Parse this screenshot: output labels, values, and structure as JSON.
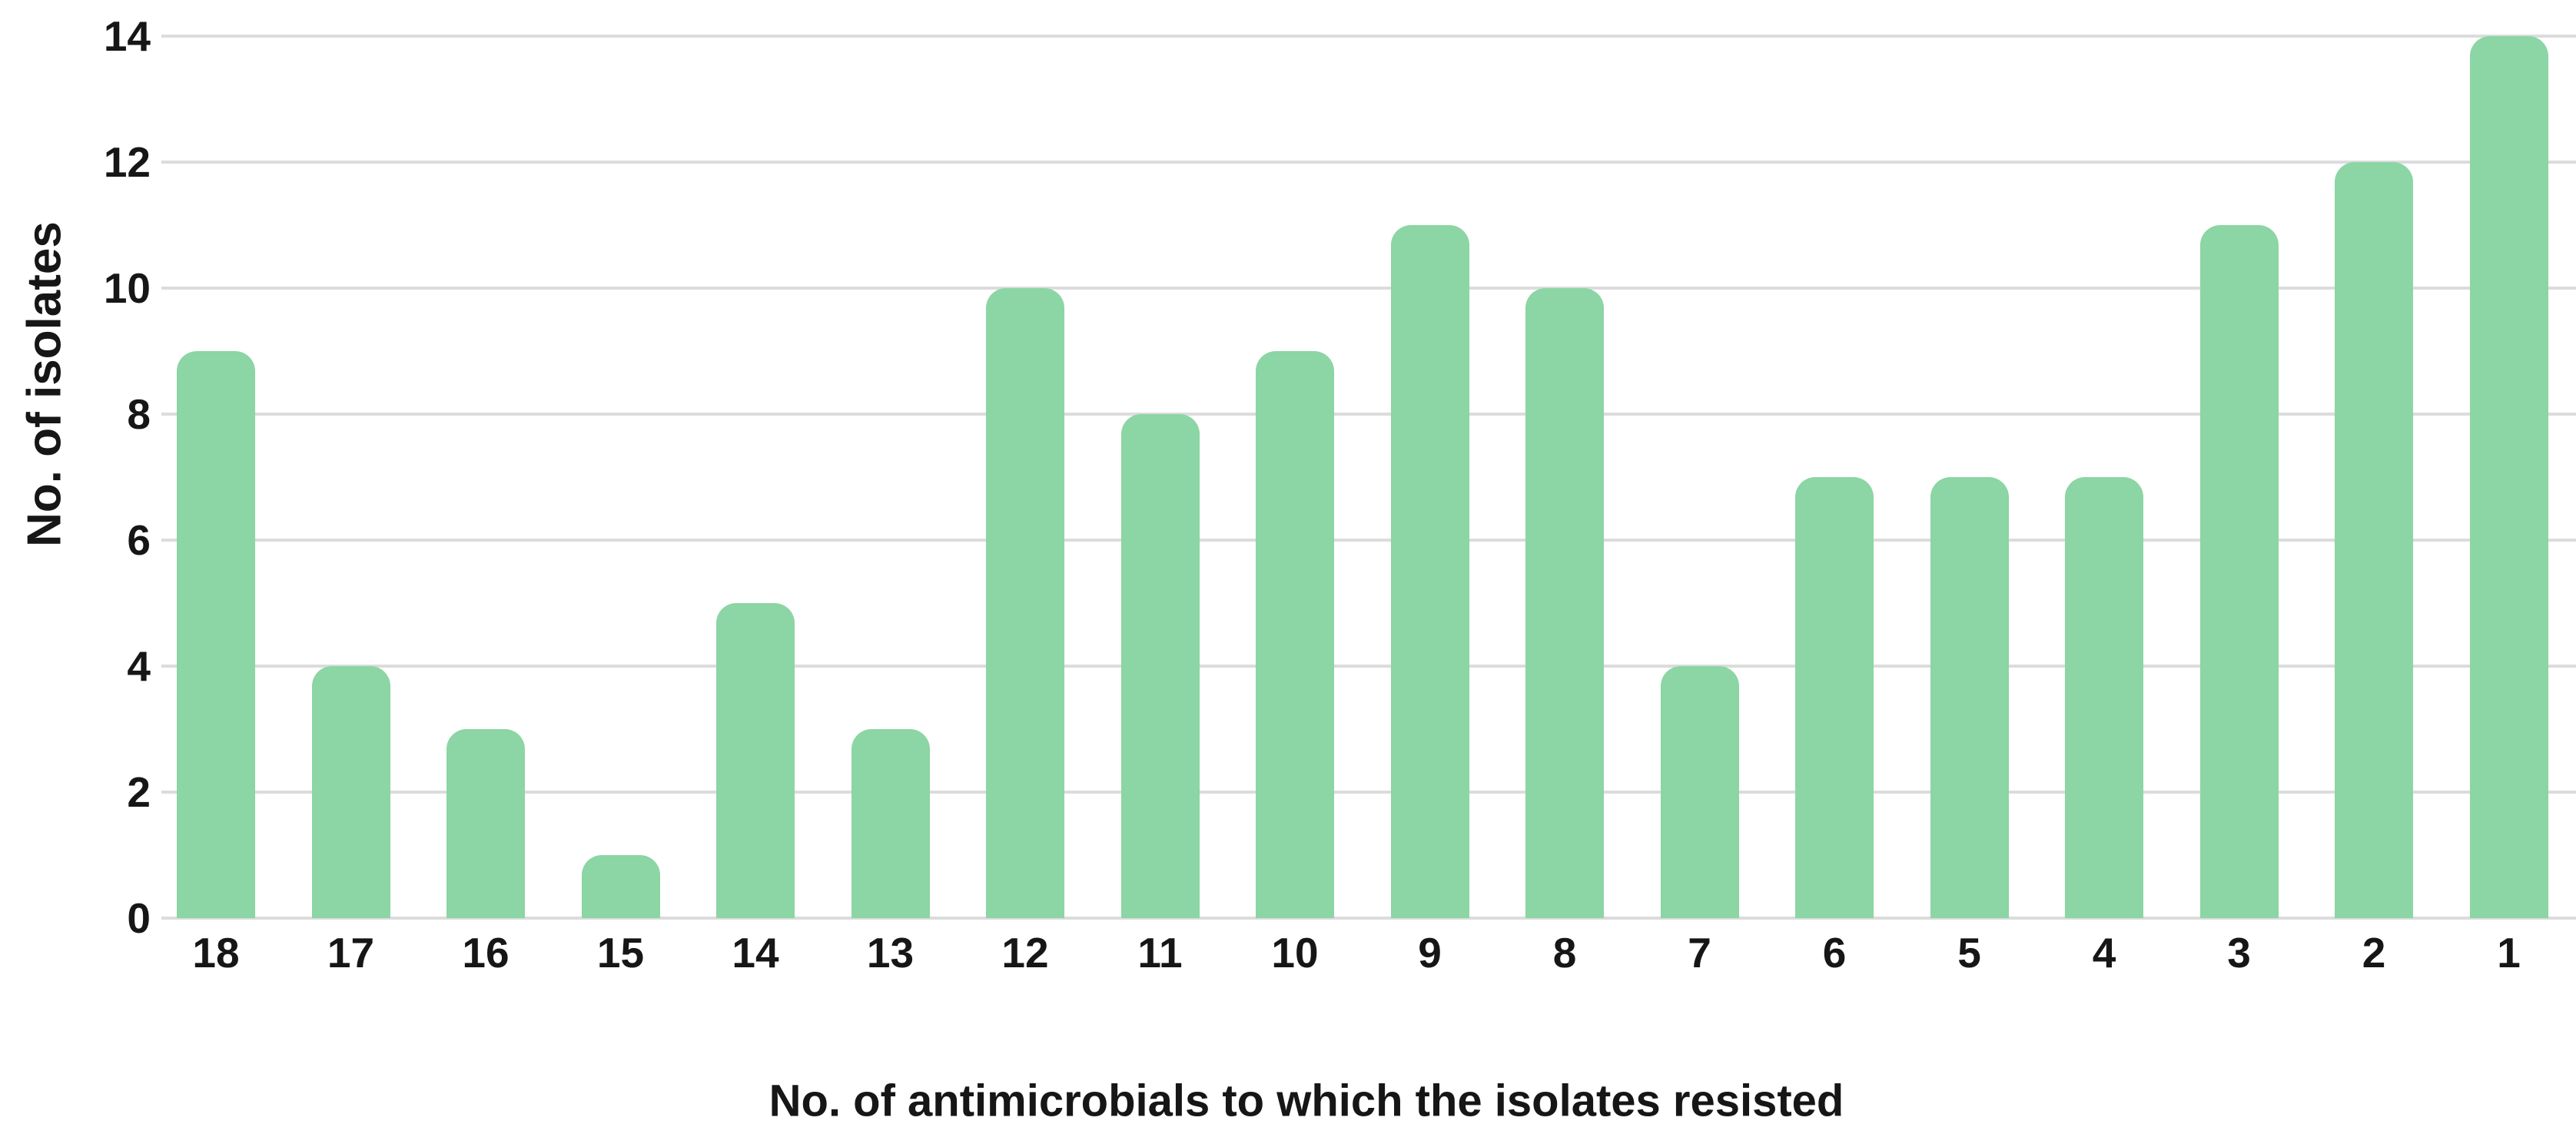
{
  "chart_data": {
    "type": "bar",
    "title": "",
    "xlabel": "No. of antimicrobials to which the isolates resisted",
    "ylabel": "No. of isolates",
    "categories": [
      "18",
      "17",
      "16",
      "15",
      "14",
      "13",
      "12",
      "11",
      "10",
      "9",
      "8",
      "7",
      "6",
      "5",
      "4",
      "3",
      "2",
      "1"
    ],
    "values": [
      9,
      4,
      3,
      1,
      5,
      3,
      10,
      8,
      9,
      11,
      10,
      4,
      7,
      7,
      7,
      11,
      12,
      14
    ],
    "ylim": [
      0,
      14
    ],
    "yticks": [
      0,
      2,
      4,
      6,
      8,
      10,
      12,
      14
    ],
    "grid": "horizontal",
    "legend": "none",
    "colors": {
      "bar": "#8CD5A4",
      "gridline": "#DCDCDC",
      "text": "#161616",
      "background": "#FFFFFF"
    }
  }
}
